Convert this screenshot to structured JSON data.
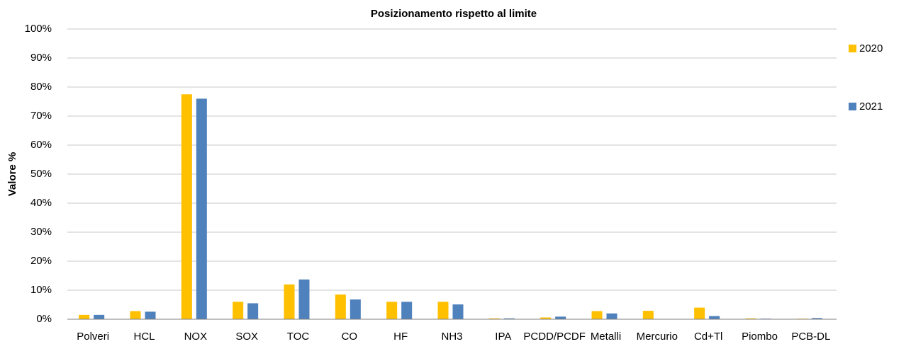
{
  "chart_data": {
    "type": "bar",
    "title": "Posizionamento rispetto al limite",
    "y_label": "Valore %",
    "categories": [
      "Polveri",
      "HCL",
      "NOX",
      "SOX",
      "TOC",
      "CO",
      "HF",
      "NH3",
      "IPA",
      "PCDD/PCDF",
      "Metalli",
      "Mercurio",
      "Cd+Tl",
      "Piombo",
      "PCB-DL"
    ],
    "series": [
      {
        "name": "2020",
        "color": "#ffc000",
        "values": [
          1.5,
          2.8,
          77.5,
          6,
          12,
          8.5,
          6,
          6,
          0.3,
          0.6,
          2.8,
          2.9,
          4,
          0.3,
          0.2
        ]
      },
      {
        "name": "2021",
        "color": "#4f81bd",
        "values": [
          1.5,
          2.6,
          76,
          5.5,
          13.7,
          6.8,
          6,
          5.1,
          0.3,
          0.9,
          2,
          0,
          1.1,
          0.2,
          0.4
        ]
      }
    ],
    "ylim": [
      0,
      100
    ],
    "yticks": [
      {
        "value": 0,
        "label": "0%"
      },
      {
        "value": 10,
        "label": "10%"
      },
      {
        "value": 20,
        "label": "20%"
      },
      {
        "value": 30,
        "label": "30%"
      },
      {
        "value": 40,
        "label": "40%"
      },
      {
        "value": 50,
        "label": "50%"
      },
      {
        "value": 60,
        "label": "60%"
      },
      {
        "value": 70,
        "label": "70%"
      },
      {
        "value": 80,
        "label": "80%"
      },
      {
        "value": 90,
        "label": "90%"
      },
      {
        "value": 100,
        "label": "100%"
      }
    ],
    "grid": true,
    "legend": "right"
  }
}
